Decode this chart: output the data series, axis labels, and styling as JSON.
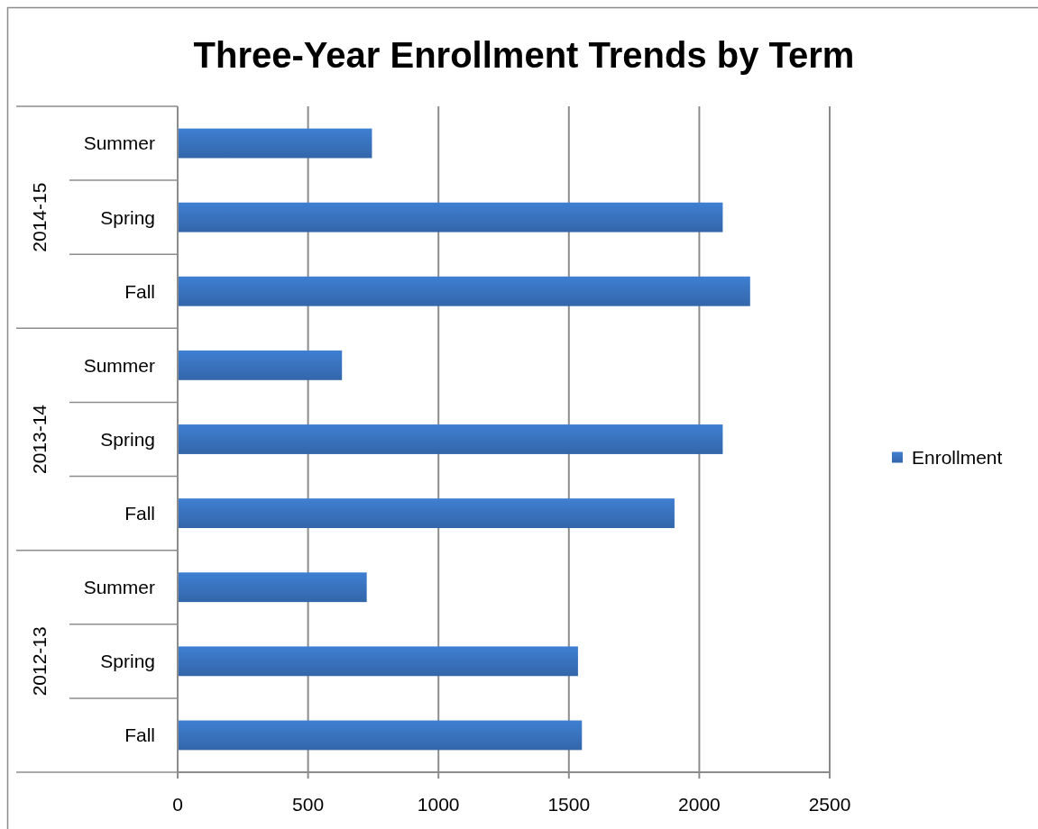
{
  "chart_data": {
    "type": "bar",
    "title": "Three-Year Enrollment Trends by Term",
    "orientation": "horizontal",
    "categories": [
      "Summer",
      "Spring",
      "Fall",
      "Summer",
      "Spring",
      "Fall",
      "Summer",
      "Spring",
      "Fall"
    ],
    "annotations": [
      "2014-15",
      "2013-14",
      "2012-13"
    ],
    "series": [
      {
        "name": "Enrollment",
        "color": "#3a74c0",
        "values": [
          745,
          2090,
          2195,
          630,
          2090,
          1905,
          725,
          1535,
          1550
        ]
      }
    ],
    "xlim": [
      0,
      2500
    ],
    "xticks": [
      0,
      500,
      1000,
      1500,
      2000,
      2500
    ],
    "grid": "x",
    "legend": "right"
  }
}
